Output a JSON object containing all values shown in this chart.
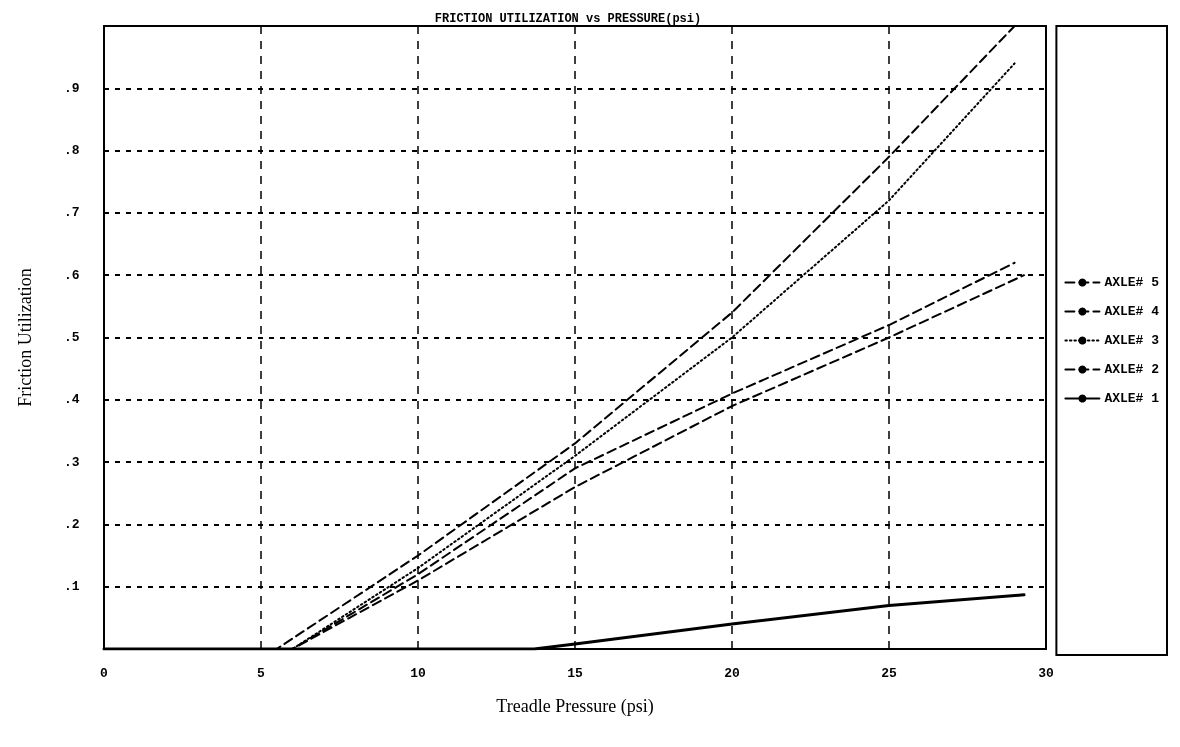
{
  "chart_data": {
    "type": "line",
    "title": "FRICTION UTILIZATION vs PRESSURE(psi)",
    "xlabel": "Treadle Pressure (psi)",
    "ylabel": "Friction Utilization",
    "xlim": [
      0,
      30
    ],
    "xticks": [
      0,
      5,
      10,
      15,
      20,
      25,
      30
    ],
    "ylim": [
      0,
      1
    ],
    "yticks": [
      {
        "value": 0.1,
        "label": ".1"
      },
      {
        "value": 0.2,
        "label": ".2"
      },
      {
        "value": 0.3,
        "label": ".3"
      },
      {
        "value": 0.4,
        "label": ".4"
      },
      {
        "value": 0.5,
        "label": ".5"
      },
      {
        "value": 0.6,
        "label": ".6"
      },
      {
        "value": 0.7,
        "label": ".7"
      },
      {
        "value": 0.8,
        "label": ".8"
      },
      {
        "value": 0.9,
        "label": ".9"
      }
    ],
    "grid": true,
    "legend": "right",
    "marker": "none",
    "series": [
      {
        "name": "AXLE# 5",
        "color": "#000000",
        "line_style": "dashed",
        "x": [
          0,
          5.5,
          10,
          15,
          20,
          25,
          29
        ],
        "values": [
          0,
          0,
          0.15,
          0.33,
          0.54,
          0.79,
          1.0
        ]
      },
      {
        "name": "AXLE# 4",
        "color": "#000000",
        "line_style": "dashed",
        "x": [
          0,
          6,
          10,
          15,
          20,
          25,
          29
        ],
        "values": [
          0,
          0,
          0.12,
          0.29,
          0.41,
          0.52,
          0.62
        ]
      },
      {
        "name": "AXLE# 3",
        "color": "#000000",
        "line_style": "dotted",
        "x": [
          0,
          6,
          10,
          15,
          20,
          25,
          29
        ],
        "values": [
          0,
          0,
          0.13,
          0.31,
          0.5,
          0.72,
          0.94
        ]
      },
      {
        "name": "AXLE# 2",
        "color": "#000000",
        "line_style": "dashed",
        "x": [
          0,
          6,
          10,
          15,
          20,
          25,
          29.3
        ],
        "values": [
          0,
          0,
          0.11,
          0.26,
          0.39,
          0.5,
          0.6
        ]
      },
      {
        "name": "AXLE# 1",
        "color": "#000000",
        "line_style": "solid",
        "x": [
          0,
          13.7,
          15,
          20,
          25,
          29.3
        ],
        "values": [
          0,
          0,
          0.008,
          0.04,
          0.07,
          0.087
        ]
      }
    ]
  }
}
